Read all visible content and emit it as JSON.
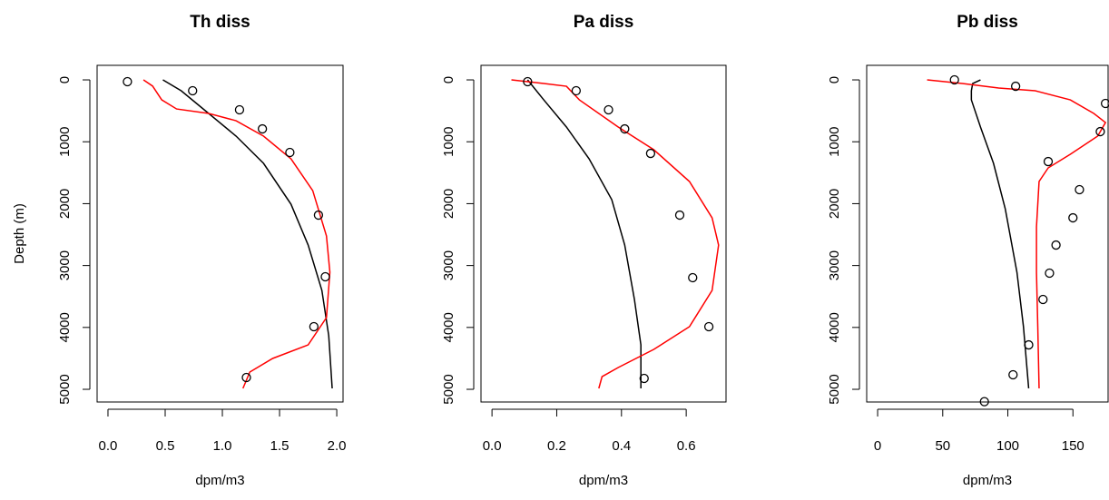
{
  "chart_data": [
    {
      "type": "line",
      "title": "Th diss",
      "xlabel": "dpm/m3",
      "ylabel": "Depth (m)",
      "xlim": [
        -0.095,
        2.055
      ],
      "ylim": [
        5205,
        -235
      ],
      "xticks": [
        {
          "value": 0,
          "label": "0.0"
        },
        0.5,
        {
          "value": 1,
          "label": "1.0"
        },
        1.5,
        {
          "value": 2,
          "label": "2.0"
        }
      ],
      "yticks": [
        0,
        1000,
        2000,
        3000,
        4000,
        5000
      ],
      "series": [
        {
          "color": "#000000",
          "marker": "line",
          "x": [
            0.48,
            0.64,
            0.88,
            1.12,
            1.36,
            1.6,
            1.75,
            1.87,
            1.93,
            1.96
          ],
          "values": [
            0,
            176,
            542,
            909,
            1349,
            2009,
            2669,
            3402,
            4135,
            4985
          ]
        },
        {
          "color": "#ff0000",
          "marker": "line",
          "x": [
            0.31,
            0.39,
            0.47,
            0.6,
            0.88,
            1.12,
            1.36,
            1.6,
            1.79,
            1.91,
            1.94,
            1.91,
            1.75,
            1.44,
            1.24,
            1.18
          ],
          "values": [
            0,
            100,
            323,
            470,
            542,
            660,
            909,
            1276,
            1789,
            2522,
            3109,
            3842,
            4282,
            4501,
            4721,
            4985
          ]
        },
        {
          "color": "#000000",
          "marker": "circle",
          "x": [
            0.17,
            0.74,
            1.15,
            1.35,
            1.59,
            1.84,
            1.9,
            1.8,
            1.21
          ],
          "values": [
            29,
            176,
            484,
            792,
            1173,
            2185,
            3182,
            3988,
            4809
          ]
        }
      ]
    },
    {
      "type": "line",
      "title": "Pa diss",
      "xlabel": "dpm/m3",
      "xlim": [
        -0.034,
        0.723
      ],
      "ylim": [
        5205,
        -235
      ],
      "xticks": [
        {
          "value": 0,
          "label": "0.0"
        },
        0.2,
        0.4,
        0.6
      ],
      "yticks": [
        0,
        1000,
        2000,
        3000,
        4000,
        5000
      ],
      "series": [
        {
          "color": "#000000",
          "marker": "line",
          "x": [
            0.11,
            0.16,
            0.23,
            0.3,
            0.37,
            0.41,
            0.44,
            0.46,
            0.46
          ],
          "values": [
            0,
            323,
            762,
            1276,
            1935,
            2669,
            3548,
            4282,
            4985
          ]
        },
        {
          "color": "#ff0000",
          "marker": "line",
          "x": [
            0.06,
            0.16,
            0.23,
            0.27,
            0.39,
            0.5,
            0.61,
            0.68,
            0.7,
            0.68,
            0.61,
            0.5,
            0.39,
            0.34,
            0.33
          ],
          "values": [
            0,
            59,
            103,
            323,
            762,
            1129,
            1642,
            2229,
            2669,
            3402,
            3988,
            4355,
            4648,
            4795,
            4985
          ]
        },
        {
          "color": "#000000",
          "marker": "circle",
          "x": [
            0.11,
            0.26,
            0.36,
            0.41,
            0.49,
            0.58,
            0.62,
            0.67,
            0.47
          ],
          "values": [
            29,
            176,
            484,
            792,
            1188,
            2185,
            3196,
            3988,
            4824
          ]
        }
      ]
    },
    {
      "type": "line",
      "title": "Pb diss",
      "xlabel": "dpm/m3",
      "xlim": [
        -8.4,
        177
      ],
      "ylim": [
        5205,
        -235
      ],
      "xticks": [
        0,
        50,
        100,
        150
      ],
      "yticks": [
        0,
        1000,
        2000,
        3000,
        4000,
        5000
      ],
      "series": [
        {
          "color": "#000000",
          "marker": "line",
          "x": [
            79,
            73,
            72,
            72,
            79,
            89,
            98,
            107,
            112,
            116
          ],
          "values": [
            0,
            59,
            176,
            323,
            762,
            1349,
            2082,
            3109,
            3988,
            4985
          ]
        },
        {
          "color": "#ff0000",
          "marker": "line",
          "x": [
            38,
            65,
            93,
            121,
            148,
            166,
            175,
            169,
            148,
            131,
            124,
            122,
            122,
            123,
            124
          ],
          "values": [
            0,
            59,
            132,
            176,
            323,
            542,
            689,
            909,
            1202,
            1422,
            1642,
            2375,
            3109,
            3988,
            4985
          ]
        },
        {
          "color": "#000000",
          "marker": "circle",
          "x": [
            59,
            106,
            175,
            171,
            131,
            155,
            150,
            137,
            132,
            127,
            116,
            104,
            82
          ],
          "values": [
            0,
            103,
            381,
            836,
            1320,
            1774,
            2229,
            2669,
            3123,
            3548,
            4282,
            4765,
            5200
          ]
        }
      ]
    }
  ]
}
